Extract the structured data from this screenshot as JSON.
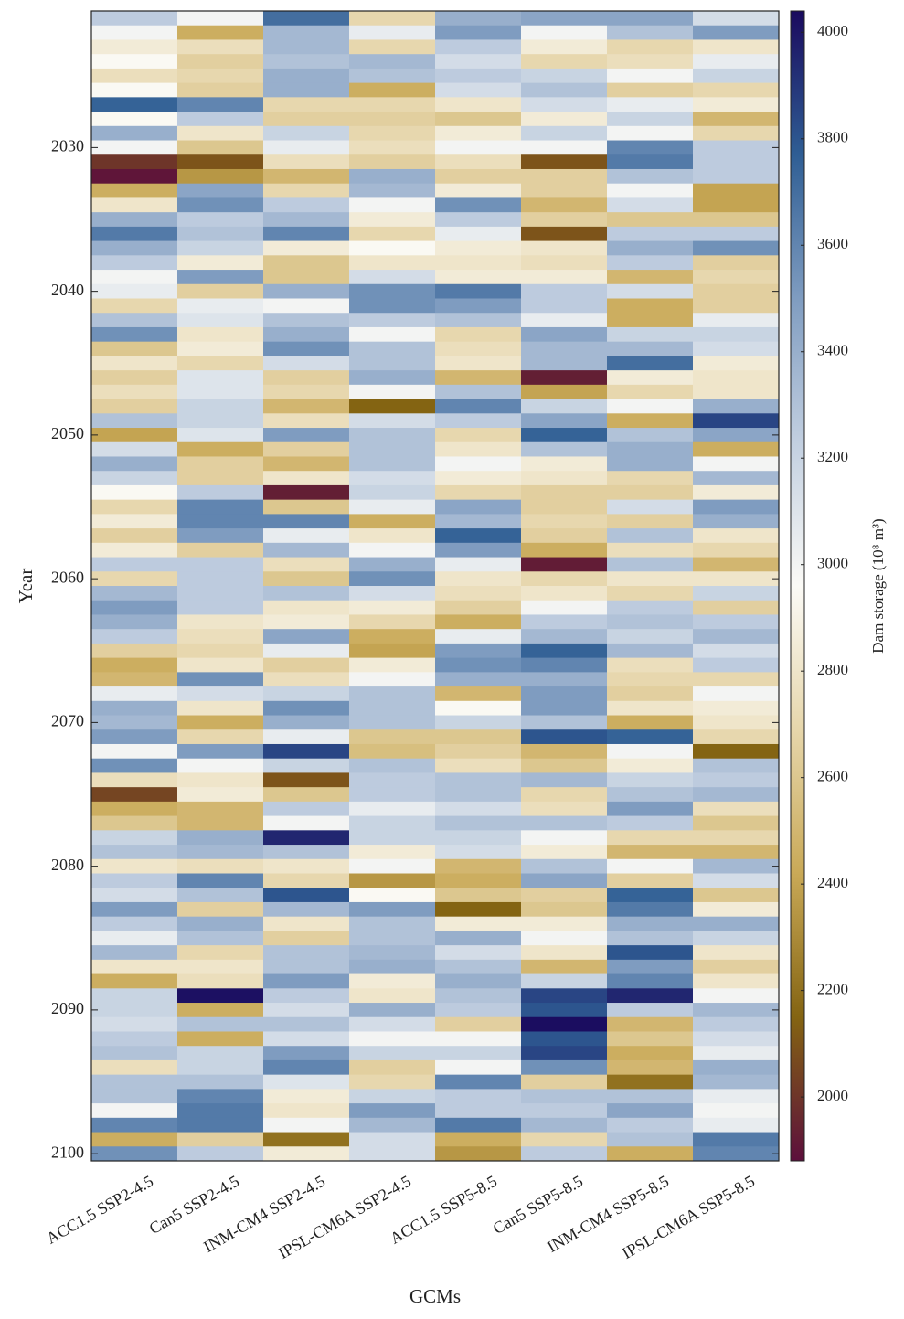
{
  "chart_data": {
    "type": "heatmap",
    "xlabel": "GCMs",
    "ylabel": "Year",
    "y": [
      2021,
      2022,
      2023,
      2024,
      2025,
      2026,
      2027,
      2028,
      2029,
      2030,
      2031,
      2032,
      2033,
      2034,
      2035,
      2036,
      2037,
      2038,
      2039,
      2040,
      2041,
      2042,
      2043,
      2044,
      2045,
      2046,
      2047,
      2048,
      2049,
      2050,
      2051,
      2052,
      2053,
      2054,
      2055,
      2056,
      2057,
      2058,
      2059,
      2060,
      2061,
      2062,
      2063,
      2064,
      2065,
      2066,
      2067,
      2068,
      2069,
      2070,
      2071,
      2072,
      2073,
      2074,
      2075,
      2076,
      2077,
      2078,
      2079,
      2080,
      2081,
      2082,
      2083,
      2084,
      2085,
      2086,
      2087,
      2088,
      2089,
      2090,
      2091,
      2092,
      2093,
      2094,
      2095,
      2096,
      2097,
      2098,
      2099,
      2100
    ],
    "ylim": [
      2020.5,
      2100.5
    ],
    "yticks": [
      2030,
      2040,
      2050,
      2060,
      2070,
      2080,
      2090,
      2100
    ],
    "series": [
      {
        "name": "ACC1.5 SSP2-4.5",
        "values": [
          3250,
          3000,
          2850,
          2950,
          2750,
          2950,
          3750,
          2950,
          3400,
          3000,
          2000,
          1900,
          2450,
          2800,
          3400,
          3650,
          3400,
          3250,
          3000,
          3050,
          2700,
          3300,
          3550,
          2600,
          2800,
          2650,
          2750,
          2650,
          3300,
          2400,
          3150,
          3400,
          3200,
          2950,
          2700,
          2850,
          2650,
          2850,
          3250,
          2700,
          3350,
          3500,
          3400,
          3250,
          2650,
          2450,
          2500,
          3050,
          3400,
          3350,
          3500,
          3000,
          3550,
          2750,
          2050,
          2450,
          2600,
          3200,
          3300,
          2800,
          3250,
          3150,
          3500,
          3250,
          3050,
          3350,
          2800,
          2450,
          3200,
          3200,
          3150,
          3250,
          3300,
          2750,
          3300,
          3300,
          3000,
          3600,
          2450,
          3550
        ]
      },
      {
        "name": "Can5 SSP2-4.5",
        "values": [
          3000,
          2450,
          2750,
          2650,
          2700,
          2650,
          3600,
          3250,
          2800,
          2600,
          2100,
          2350,
          3450,
          3550,
          3250,
          3300,
          3200,
          2850,
          3500,
          2650,
          3050,
          3100,
          2800,
          2850,
          2700,
          3100,
          3100,
          3200,
          3200,
          3100,
          2450,
          2650,
          2650,
          3250,
          3600,
          3600,
          3500,
          2650,
          3250,
          3250,
          3250,
          3250,
          2800,
          2750,
          2700,
          2800,
          3550,
          3150,
          2800,
          2450,
          2700,
          3500,
          3000,
          2800,
          2850,
          2500,
          2500,
          3400,
          3350,
          2750,
          3600,
          3300,
          2650,
          3400,
          3300,
          2700,
          2800,
          2750,
          4020,
          2450,
          3300,
          2450,
          3200,
          3200,
          3300,
          3600,
          3650,
          3650,
          2650,
          3250
        ]
      },
      {
        "name": "INM-CM4 SSP2-4.5",
        "values": [
          3700,
          3350,
          3350,
          3300,
          3400,
          3400,
          2700,
          2650,
          3200,
          3050,
          2750,
          2500,
          2700,
          3250,
          3350,
          3600,
          2850,
          2600,
          2600,
          3400,
          3000,
          3300,
          3400,
          3550,
          3150,
          2650,
          2700,
          2500,
          2750,
          3500,
          2650,
          2500,
          2800,
          1930,
          2600,
          3600,
          3050,
          3350,
          2750,
          2600,
          3300,
          2800,
          2850,
          3450,
          3050,
          2650,
          2750,
          3200,
          3550,
          3400,
          3050,
          3850,
          3200,
          2100,
          2600,
          3250,
          3000,
          3950,
          3300,
          2800,
          2700,
          3800,
          3350,
          2800,
          2650,
          3300,
          3300,
          3500,
          3250,
          3150,
          3300,
          3150,
          3500,
          3600,
          3100,
          2850,
          2800,
          3000,
          2200,
          2850
        ]
      },
      {
        "name": "IPSL-CM6A SSP2-4.5",
        "values": [
          2700,
          3050,
          2700,
          3350,
          3300,
          2450,
          2700,
          2650,
          2700,
          2750,
          2650,
          3400,
          3350,
          3000,
          2850,
          2700,
          2950,
          2800,
          3150,
          3550,
          3550,
          3250,
          3000,
          3300,
          3300,
          3400,
          3000,
          2150,
          3150,
          3300,
          3300,
          3300,
          3150,
          3200,
          3050,
          2450,
          2800,
          3000,
          3400,
          3550,
          3150,
          2850,
          2700,
          2450,
          2400,
          2850,
          3000,
          3300,
          3300,
          3300,
          2600,
          2550,
          3300,
          3250,
          3250,
          3050,
          3200,
          3200,
          2850,
          3000,
          2350,
          2950,
          3500,
          3300,
          3300,
          3350,
          3400,
          2850,
          2800,
          3400,
          3150,
          3000,
          3200,
          2650,
          2700,
          3200,
          3500,
          3350,
          3150,
          3150
        ]
      },
      {
        "name": "ACC1.5 SSP5-8.5",
        "values": [
          3400,
          3500,
          3250,
          3150,
          3250,
          3150,
          2800,
          2600,
          2850,
          3000,
          2750,
          2650,
          2850,
          3550,
          3250,
          3050,
          2850,
          2800,
          2850,
          3650,
          3500,
          3300,
          2700,
          2750,
          2800,
          2500,
          3300,
          3600,
          3250,
          2700,
          2800,
          3000,
          2850,
          2700,
          3450,
          3350,
          3750,
          3500,
          3050,
          2800,
          2750,
          2650,
          2450,
          3050,
          3500,
          3550,
          3400,
          2500,
          2950,
          3200,
          2600,
          2650,
          2750,
          3300,
          3300,
          3150,
          3300,
          3200,
          3150,
          2500,
          2450,
          2600,
          2150,
          2850,
          3400,
          3150,
          3300,
          3400,
          3300,
          3250,
          2650,
          3000,
          3200,
          3000,
          3600,
          3250,
          3250,
          3650,
          2450,
          2350
        ]
      },
      {
        "name": "Can5 SSP5-8.5",
        "values": [
          3450,
          3000,
          2850,
          2700,
          3200,
          3300,
          3150,
          2850,
          3200,
          3000,
          2100,
          2650,
          2650,
          2500,
          2650,
          2100,
          2800,
          2750,
          2850,
          3250,
          3250,
          3050,
          3450,
          3350,
          3350,
          1930,
          2400,
          3200,
          3450,
          3750,
          3300,
          2850,
          2800,
          2650,
          2650,
          2700,
          2650,
          2450,
          1920,
          2700,
          2800,
          3000,
          3250,
          3350,
          3750,
          3600,
          3400,
          3500,
          3500,
          3300,
          3800,
          2500,
          2600,
          3350,
          2700,
          2750,
          3300,
          3000,
          2850,
          3300,
          3450,
          2650,
          2600,
          2850,
          3000,
          2800,
          2500,
          3200,
          3850,
          3800,
          4030,
          3800,
          3850,
          3550,
          2650,
          3300,
          3250,
          3350,
          2700,
          3250
        ]
      },
      {
        "name": "INM-CM4 SSP5-8.5",
        "values": [
          3450,
          3300,
          2700,
          2750,
          3000,
          2650,
          3050,
          3200,
          3000,
          3600,
          3650,
          3300,
          3000,
          3150,
          2600,
          3250,
          3400,
          3250,
          2500,
          3150,
          2450,
          2450,
          3200,
          3350,
          3700,
          2850,
          2700,
          3000,
          2450,
          3300,
          3400,
          3400,
          2700,
          2650,
          3150,
          2650,
          3300,
          2750,
          3300,
          2800,
          2700,
          3250,
          3300,
          3200,
          3350,
          2750,
          2700,
          2650,
          2800,
          2450,
          3750,
          3000,
          2850,
          3200,
          3300,
          3500,
          3250,
          2700,
          2500,
          3000,
          2650,
          3750,
          3650,
          3400,
          3300,
          3800,
          3500,
          3600,
          3950,
          3250,
          2500,
          2600,
          2450,
          2500,
          2200,
          3300,
          3450,
          3250,
          3300,
          2450
        ]
      },
      {
        "name": "IPSL-CM6A SSP5-8.5",
        "values": [
          3150,
          3500,
          2800,
          3050,
          3200,
          2700,
          2850,
          2500,
          2700,
          3250,
          3250,
          3250,
          2400,
          2400,
          2600,
          3250,
          3550,
          2650,
          2700,
          2650,
          2650,
          3050,
          3200,
          3150,
          2850,
          2800,
          2800,
          3400,
          3850,
          3450,
          2450,
          3000,
          3350,
          2850,
          3500,
          3400,
          2800,
          2700,
          2500,
          2800,
          3200,
          2650,
          3250,
          3350,
          3150,
          3250,
          2700,
          3000,
          2850,
          2800,
          2700,
          2150,
          3300,
          3250,
          3350,
          2750,
          2600,
          2700,
          2500,
          3350,
          3150,
          2600,
          2850,
          3400,
          3200,
          2800,
          2650,
          2800,
          3000,
          3350,
          3250,
          3150,
          3050,
          3400,
          3350,
          3050,
          3000,
          3050,
          3650,
          3600
        ]
      }
    ],
    "colorbar": {
      "label": "Dam storage (10⁸ m³)",
      "lim": [
        1880,
        4040
      ],
      "ticks": [
        2000,
        2200,
        2400,
        2600,
        2800,
        3000,
        3200,
        3400,
        3600,
        3800,
        4000
      ],
      "colormap": [
        "#5c0f3c",
        "#846412",
        "#c9a957",
        "#e6d6ab",
        "#fbfaf6",
        "#c2cfe0",
        "#7f9cc0",
        "#2f5e94",
        "#1a0a5e"
      ]
    }
  }
}
